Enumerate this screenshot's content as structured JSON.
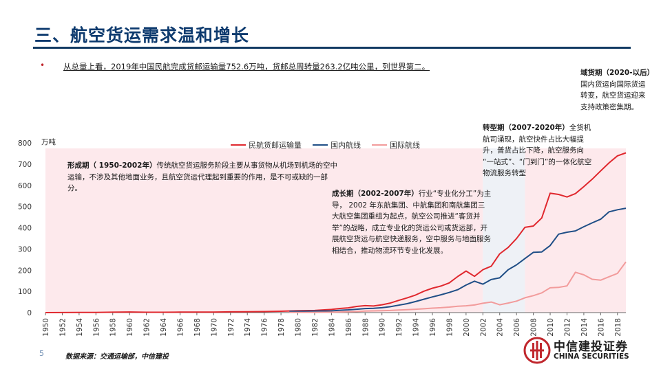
{
  "page": {
    "title": "三、航空货运需求温和增长",
    "bullet": "从总量上看，2019年中国民航完成货邮运输量752.6万吨，货邮总周转量263.2亿吨公里，列世界第二。",
    "source": "数据来源：交通运输部，中信建投",
    "page_number": "5",
    "logo_cn": "中信建投证券",
    "logo_en": "CHINA SECURITIES",
    "brand_color": "#c0272d",
    "title_color": "#0d3a6e"
  },
  "notes": {
    "formation_head": "形成期（ 1950-2002年）",
    "formation_body": "传统航空货运服务阶段主要从事货物从机场到机场的空中运输，不涉及其他地面业务，且航空货运代理起到重要的作用，是不可或缺的一部分。",
    "growth_head": "成长期（2002-2007年）",
    "growth_body": "行业“专业化分工”为主导， 2002 年东航集团、中航集团和南航集团三大航空集团重组为起点，航空公司推进“客货并举”的战略，成立专业化的货运公司或货运部，开展航空货运与航空快递服务，空中服务与地面服务相结合，推动物流环节专业化发展。",
    "transition_head": "转型期（2007-2020年）",
    "transition_body": "全货机航司涌现，航空快件占比大幅提升，普货占比下降，航空服务向 “一站式”、“门到门”的一体化航空物流服务转型",
    "outbound_head": "域货期（2020-以后）",
    "outbound_body": "国内货运向国际货运转变，航空货运迎来支持政策密集期。"
  },
  "chart_data": {
    "type": "line",
    "ylabel": "万吨",
    "ylim": [
      0,
      800
    ],
    "yticks": [
      0,
      100,
      200,
      300,
      400,
      500,
      600,
      700,
      800
    ],
    "xlim": [
      1950,
      2019
    ],
    "xticks": [
      "1950",
      "1952",
      "1954",
      "1956",
      "1958",
      "1960",
      "1962",
      "1964",
      "1966",
      "1968",
      "1970",
      "1972",
      "1974",
      "1976",
      "1978",
      "1980",
      "1982",
      "1984",
      "1986",
      "1988",
      "1990",
      "1992",
      "1994",
      "1996",
      "1998",
      "2000",
      "2002",
      "2004",
      "2006",
      "2008",
      "2010",
      "2012",
      "2014",
      "2016",
      "2018"
    ],
    "legend_position": "top",
    "periods": [
      {
        "start": 1950,
        "end": 2002,
        "color": "#fde9ec"
      },
      {
        "start": 2002,
        "end": 2007,
        "color": "#eef1f6"
      },
      {
        "start": 2007,
        "end": 2019,
        "color": "#fde9ec"
      }
    ],
    "series": [
      {
        "name": "民航货邮运输量",
        "color": "#e0282e",
        "x": [
          1950,
          1952,
          1954,
          1956,
          1958,
          1960,
          1962,
          1964,
          1966,
          1968,
          1970,
          1972,
          1974,
          1976,
          1978,
          1980,
          1982,
          1984,
          1985,
          1986,
          1987,
          1988,
          1989,
          1990,
          1991,
          1992,
          1993,
          1994,
          1995,
          1996,
          1997,
          1998,
          1999,
          2000,
          2001,
          2002,
          2003,
          2004,
          2005,
          2006,
          2007,
          2008,
          2009,
          2010,
          2011,
          2012,
          2013,
          2014,
          2015,
          2016,
          2017,
          2018,
          2019
        ],
        "y": [
          0.08,
          0.3,
          0.5,
          1,
          2,
          3,
          1.6,
          1.5,
          2.4,
          2.5,
          2.5,
          3.5,
          4,
          5,
          6.4,
          8.9,
          10.2,
          15,
          19.5,
          22.4,
          29,
          32.8,
          31,
          37,
          45,
          57.5,
          69.4,
          82.9,
          101,
          115,
          125,
          140,
          170,
          196,
          171,
          202,
          219,
          277,
          307,
          349,
          402,
          408,
          446,
          563,
          557,
          545,
          561,
          594,
          629,
          668,
          706,
          739,
          753
        ]
      },
      {
        "name": "国内航线",
        "color": "#1f4e86",
        "x": [
          1979,
          1980,
          1982,
          1984,
          1985,
          1986,
          1987,
          1988,
          1989,
          1990,
          1991,
          1992,
          1993,
          1994,
          1995,
          1996,
          1997,
          1998,
          1999,
          2000,
          2001,
          2002,
          2003,
          2004,
          2005,
          2006,
          2007,
          2008,
          2009,
          2010,
          2011,
          2012,
          2013,
          2014,
          2015,
          2016,
          2017,
          2018,
          2019
        ],
        "y": [
          6,
          6,
          7,
          8,
          11,
          13,
          16,
          19,
          20,
          23,
          28,
          35,
          42,
          52,
          63,
          74,
          84,
          95,
          108,
          130,
          148,
          134,
          156,
          164,
          202,
          225,
          255,
          284,
          286,
          316,
          370,
          379,
          385,
          405,
          423,
          440,
          475,
          485,
          492
        ]
      },
      {
        "name": "国际航线",
        "color": "#f29b9b",
        "x": [
          1979,
          1980,
          1982,
          1984,
          1985,
          1986,
          1987,
          1988,
          1989,
          1990,
          1991,
          1992,
          1993,
          1994,
          1995,
          1996,
          1997,
          1998,
          1999,
          2000,
          2001,
          2002,
          2003,
          2004,
          2005,
          2006,
          2007,
          2008,
          2009,
          2010,
          2011,
          2012,
          2013,
          2014,
          2015,
          2016,
          2017,
          2018,
          2019
        ],
        "y": [
          0.5,
          0.5,
          1,
          2,
          3,
          4,
          5,
          7,
          8,
          9,
          10,
          12,
          14,
          16,
          18,
          21,
          23,
          26,
          30,
          32,
          36,
          44,
          50,
          37,
          45,
          54,
          70,
          80,
          93,
          117,
          119,
          126,
          190,
          178,
          157,
          153,
          169,
          185,
          239
        ]
      }
    ]
  }
}
